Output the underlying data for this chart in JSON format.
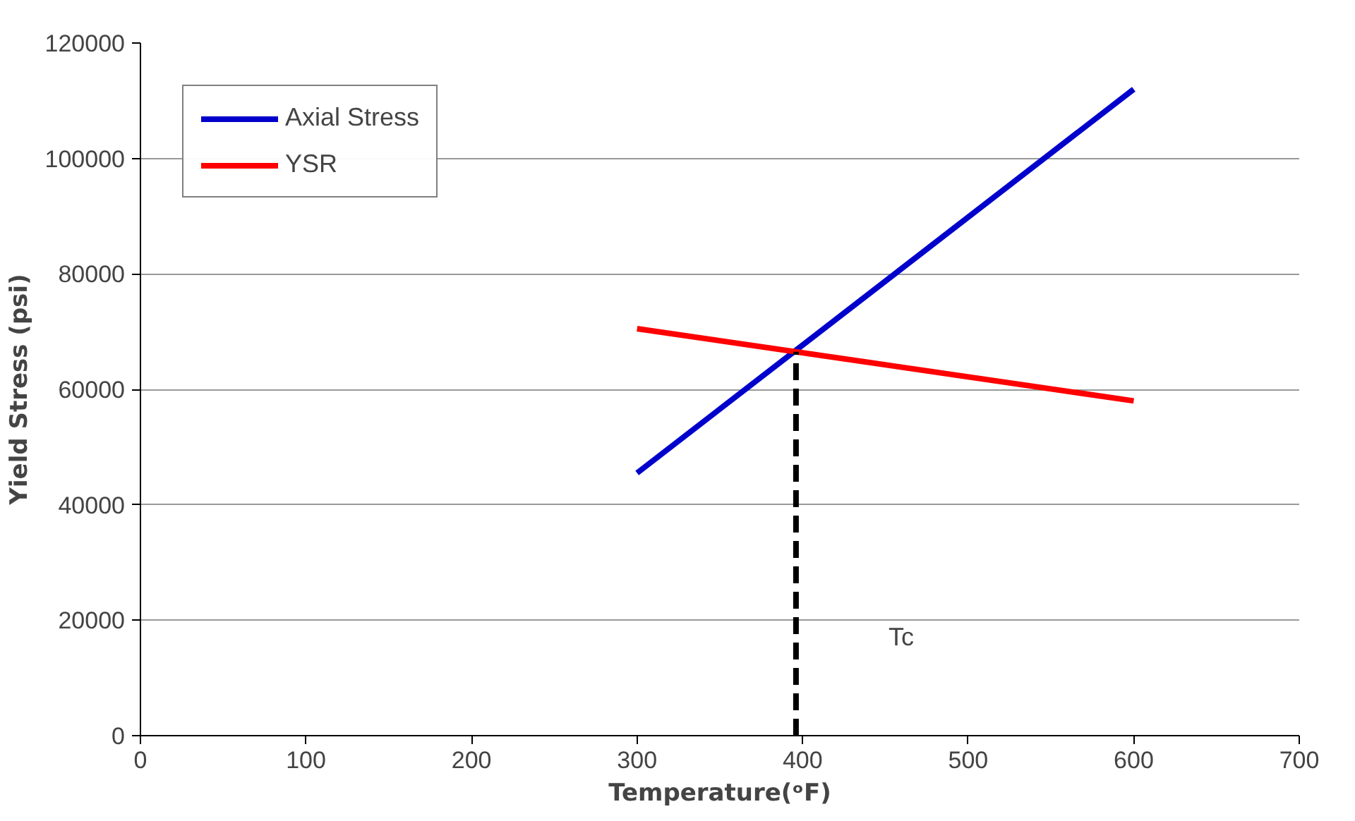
{
  "chart_data": {
    "type": "line",
    "xlabel": "Temperature(ᵒF)",
    "ylabel": "Yield Stress (psi)",
    "xlim": [
      0,
      700
    ],
    "xticks": [
      0,
      100,
      200,
      300,
      400,
      500,
      600,
      700
    ],
    "ylim": [
      0,
      120000
    ],
    "yticks": [
      0,
      20000,
      40000,
      60000,
      80000,
      100000,
      120000
    ],
    "grid": "y",
    "legend": "top left",
    "marker": "none",
    "series": [
      {
        "name": "Axial Stress",
        "color": "#0000cc",
        "x": [
          300,
          600
        ],
        "values": [
          45500,
          112000
        ]
      },
      {
        "name": "YSR",
        "color": "#ff0000",
        "x": [
          300,
          600
        ],
        "values": [
          70500,
          58000
        ]
      },
      {
        "color": "#000000",
        "x": [
          396,
          396
        ],
        "values": [
          0,
          66500
        ],
        "line_style": "dashed"
      }
    ],
    "annotations": [
      "Tc"
    ]
  }
}
